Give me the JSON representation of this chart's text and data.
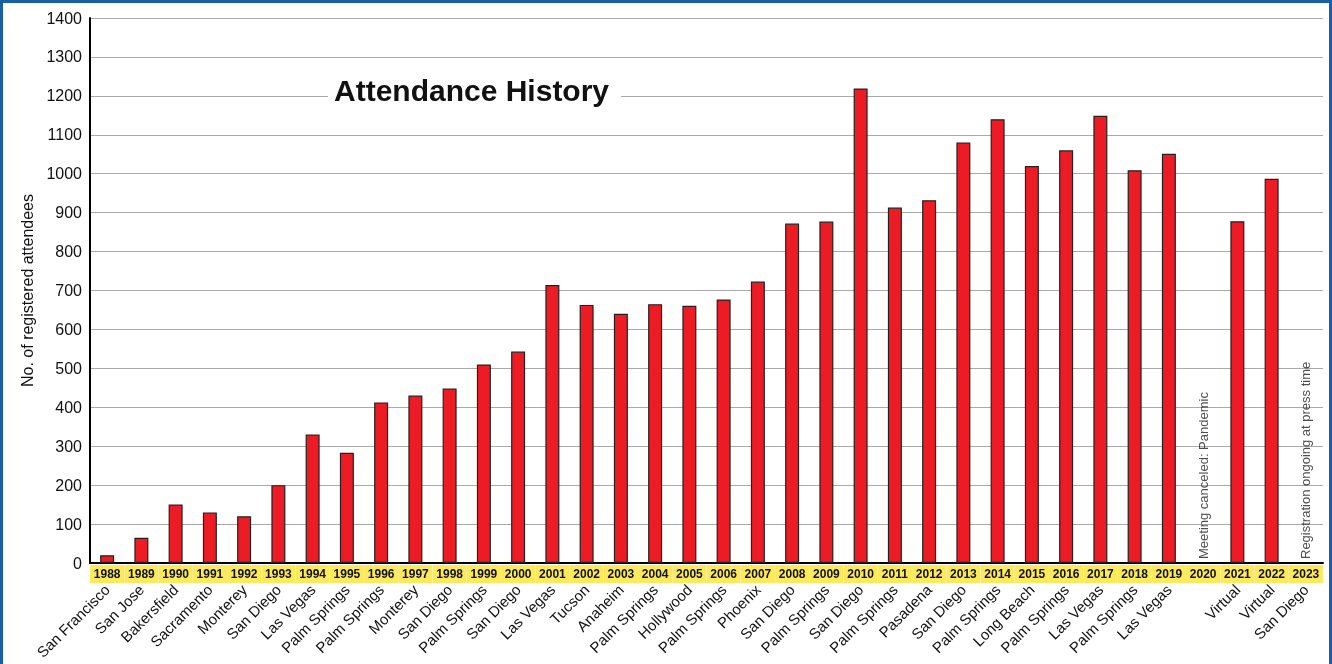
{
  "chart_data": {
    "type": "bar",
    "title": "Attendance History",
    "ylabel": "No. of registered attendees",
    "categories": [
      "San Francisco",
      "San Jose",
      "Bakersfield",
      "Sacramento",
      "Monterey",
      "San Diego",
      "Las Vegas",
      "Palm Springs",
      "Palm Springs",
      "Monterey",
      "San Diego",
      "Palm Springs",
      "San Diego",
      "Las Vegas",
      "Tucson",
      "Anaheim",
      "Palm Springs",
      "Hollywood",
      "Palm Springs",
      "Phoenix",
      "San Diego",
      "Palm Springs",
      "San Diego",
      "Palm Springs",
      "Pasadena",
      "San Diego",
      "Palm Springs",
      "Long Beach",
      "Palm Springs",
      "Las Vegas",
      "Palm Springs",
      "Las Vegas",
      null,
      "Virtual",
      "Virtual",
      "San Diego"
    ],
    "values": [
      20,
      65,
      150,
      130,
      120,
      200,
      330,
      283,
      412,
      430,
      448,
      510,
      543,
      714,
      663,
      640,
      665,
      661,
      677,
      723,
      872,
      877,
      1219,
      913,
      932,
      1080,
      1140,
      1020,
      1060,
      1149,
      1009,
      1051,
      null,
      878,
      987,
      null
    ],
    "color": "#ed1c24",
    "x2lim": [
      1987.5,
      2023.5
    ],
    "x2ticks": [
      1988,
      1989,
      1990,
      1991,
      1992,
      1993,
      1994,
      1995,
      1996,
      1997,
      1998,
      1999,
      2000,
      2001,
      2002,
      2003,
      2004,
      2005,
      2006,
      2007,
      2008,
      2009,
      2010,
      2011,
      2012,
      2013,
      2014,
      2015,
      2016,
      2017,
      2018,
      2019,
      2020,
      2021,
      2022,
      2023
    ],
    "ylim": [
      0,
      1400
    ],
    "yticks": [
      0,
      100,
      200,
      300,
      400,
      500,
      600,
      700,
      800,
      900,
      1000,
      1100,
      1200,
      1300,
      1400
    ],
    "grid": "y",
    "annotations": [
      "Meeting canceled: Pandemic",
      "Registration ongoing at press time"
    ]
  }
}
